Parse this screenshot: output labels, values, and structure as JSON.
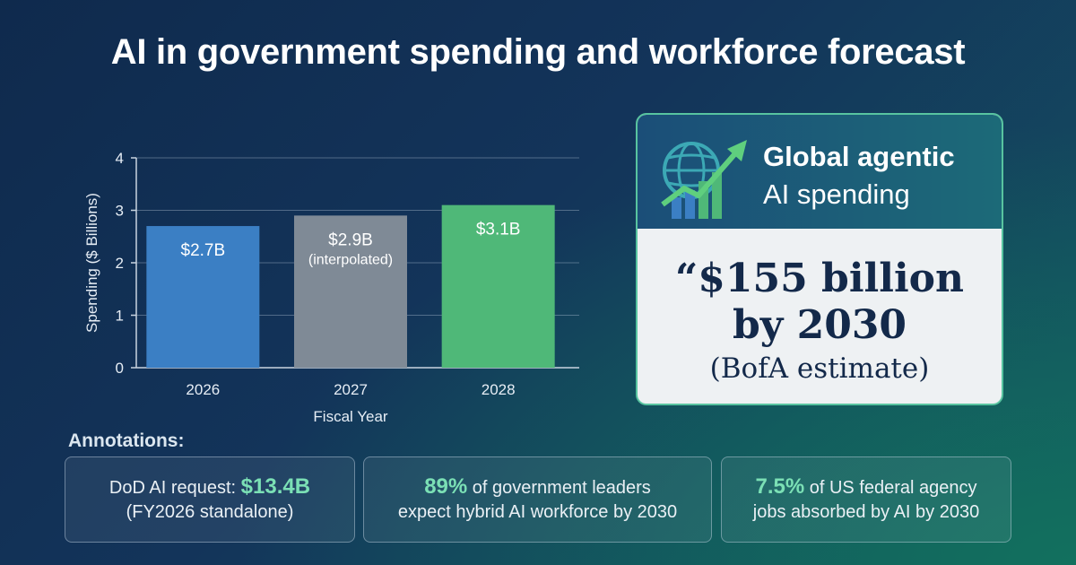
{
  "title": "AI in government spending and workforce forecast",
  "chart_data": {
    "type": "bar",
    "categories": [
      "2026",
      "2027",
      "2028"
    ],
    "values": [
      2.7,
      2.9,
      3.1
    ],
    "value_labels": [
      "$2.7B",
      "$2.9B",
      "$3.1B"
    ],
    "value_sublabels": [
      "",
      "(interpolated)",
      ""
    ],
    "colors": [
      "#3b7fc4",
      "#7f8a96",
      "#4fb878"
    ],
    "xlabel": "Fiscal Year",
    "ylabel": "Spending ($ Billions)",
    "ylim": [
      0,
      4
    ],
    "yticks": [
      0,
      1,
      2,
      3,
      4
    ],
    "grid": true
  },
  "card": {
    "heading_line1": "Global agentic",
    "heading_line2": "AI spending",
    "quote_line1": "“$155 billion",
    "quote_line2": "by 2030",
    "quote_source": "(BofA estimate)",
    "icon": "globe-growth-arrow-icon"
  },
  "annotations": {
    "heading": "Annotations:",
    "items": [
      {
        "pre": "DoD AI request: ",
        "highlight": "$13.4B",
        "post": "",
        "line2": "(FY2026 standalone)"
      },
      {
        "pre": "",
        "highlight": "89%",
        "post": " of government leaders",
        "line2": "expect hybrid AI workforce by 2030"
      },
      {
        "pre": "",
        "highlight": "7.5%",
        "post": " of US federal agency",
        "line2": "jobs absorbed by AI by 2030"
      }
    ]
  },
  "colors": {
    "accent_green": "#7be0b5",
    "card_border": "#58c4a0",
    "card_text": "#13294a"
  }
}
